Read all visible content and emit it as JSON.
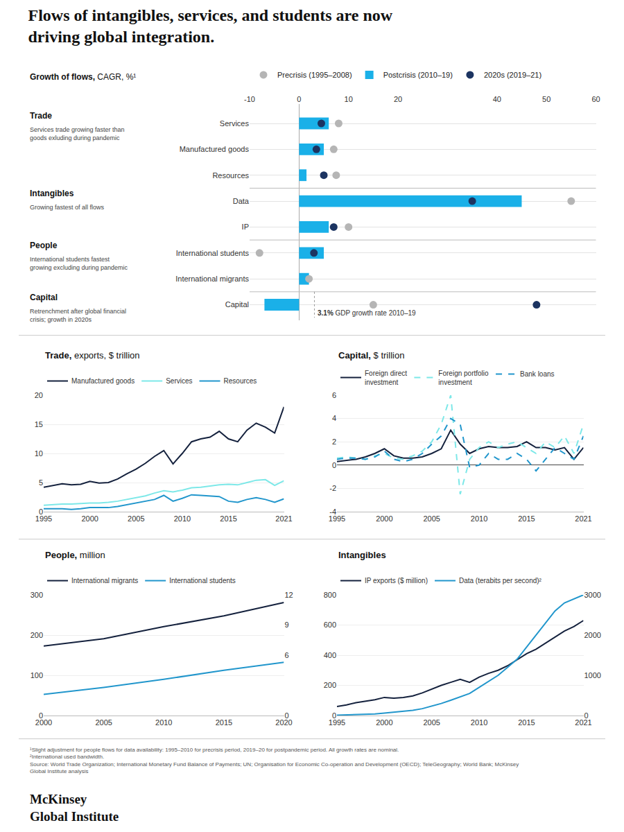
{
  "chart_data": [
    {
      "type": "dot",
      "title": "Flows of intangibles, services, and students are now\ndriving global integration.",
      "subtitle": "Growth of flows, CAGR, %¹",
      "orientation": "horizontal",
      "categories": [
        "Services",
        "Manufactured goods",
        "Resources",
        "Data",
        "IP",
        "International students",
        "International migrants",
        "Capital"
      ],
      "series": [
        {
          "name": "Precrisis (1995–2008)",
          "type": "scatter",
          "marker": "circle",
          "color": "#b5b5b5",
          "values": [
            8,
            7,
            7.5,
            55,
            10,
            -8,
            2,
            15
          ]
        },
        {
          "name": "Postcrisis (2010–19)",
          "type": "bar",
          "color": "#1ab0e8",
          "values": [
            6,
            5,
            1.5,
            45,
            6,
            5,
            2,
            -7
          ]
        },
        {
          "name": "2020s (2019–21)",
          "type": "scatter",
          "marker": "circle",
          "color": "#1c3461",
          "values": [
            4.5,
            3.5,
            5.0,
            35,
            7,
            3,
            null,
            48
          ]
        }
      ],
      "xlim": [
        -10,
        60
      ],
      "xticks": [
        -10,
        0,
        10,
        20,
        40,
        50,
        60
      ],
      "grid": true,
      "legend": "top",
      "annotations": [
        {
          "category": "Services",
          "title": "Trade",
          "text": "Services trade growing faster than\ngoods exluding during pandemic"
        },
        {
          "category": "Data",
          "title": "Intangibles",
          "text": "Growing fastest of all flows"
        },
        {
          "category": "International students",
          "title": "People",
          "text": "International students fastest\ngrowing excluding during pandemic"
        },
        {
          "category": "Capital",
          "title": "Capital",
          "text": "Retrenchment after global financial\ncrisis; growth in 2020s"
        },
        {
          "x": 3.1,
          "label": "3.1%",
          "text": "GDP growth rate 2010–19"
        }
      ]
    },
    {
      "type": "line",
      "title": "Trade, exports, $ trillion",
      "x": [
        1995,
        1996,
        1997,
        1998,
        1999,
        2000,
        2001,
        2002,
        2003,
        2004,
        2005,
        2006,
        2007,
        2008,
        2009,
        2010,
        2011,
        2012,
        2013,
        2014,
        2015,
        2016,
        2017,
        2018,
        2019,
        2020,
        2021
      ],
      "series": [
        {
          "name": "Manufactured goods",
          "color": "#14213d",
          "values": [
            4.2,
            4.5,
            4.8,
            4.6,
            4.7,
            5.2,
            4.9,
            5.0,
            5.6,
            6.5,
            7.3,
            8.3,
            9.5,
            10.5,
            8.2,
            10.0,
            12.0,
            12.5,
            12.8,
            13.8,
            12.5,
            12.0,
            14.0,
            15.2,
            14.5,
            13.5,
            18.0
          ]
        },
        {
          "name": "Services",
          "color": "#7de8e8",
          "values": [
            1.1,
            1.2,
            1.3,
            1.3,
            1.4,
            1.5,
            1.5,
            1.6,
            1.8,
            2.1,
            2.4,
            2.7,
            3.2,
            3.6,
            3.4,
            3.7,
            4.1,
            4.2,
            4.4,
            4.6,
            4.7,
            4.6,
            5.0,
            5.4,
            5.5,
            4.5,
            5.3
          ]
        },
        {
          "name": "Resources",
          "color": "#2196cc",
          "values": [
            0.5,
            0.5,
            0.5,
            0.4,
            0.5,
            0.7,
            0.7,
            0.7,
            0.9,
            1.2,
            1.5,
            1.8,
            2.1,
            2.8,
            1.8,
            2.3,
            2.9,
            2.8,
            2.7,
            2.6,
            1.8,
            1.6,
            2.1,
            2.4,
            2.1,
            1.6,
            2.2
          ]
        }
      ],
      "xlim": [
        1995,
        2021
      ],
      "xticks": [
        1995,
        2000,
        2005,
        2010,
        2015,
        2021
      ],
      "ylim": [
        0,
        20
      ],
      "yticks": [
        0,
        5,
        10,
        15,
        20
      ],
      "grid": true,
      "legend": "top"
    },
    {
      "type": "line",
      "title": "Capital, $ trillion",
      "x": [
        1995,
        1996,
        1997,
        1998,
        1999,
        2000,
        2001,
        2002,
        2003,
        2004,
        2005,
        2006,
        2007,
        2008,
        2009,
        2010,
        2011,
        2012,
        2013,
        2014,
        2015,
        2016,
        2017,
        2018,
        2019,
        2020,
        2021
      ],
      "series": [
        {
          "name": "Foreign direct\ninvestment",
          "color": "#14213d",
          "line_style": "solid",
          "values": [
            0.3,
            0.4,
            0.5,
            0.7,
            1.0,
            1.4,
            0.8,
            0.6,
            0.6,
            0.7,
            1.0,
            1.4,
            3.0,
            1.8,
            1.0,
            1.4,
            1.6,
            1.5,
            1.5,
            1.6,
            2.0,
            1.5,
            1.5,
            1.3,
            1.5,
            0.5,
            1.5
          ]
        },
        {
          "name": "Foreign portfolio\ninvestment",
          "color": "#7de8e8",
          "line_style": "dashed",
          "values": [
            0.6,
            0.7,
            0.6,
            0.5,
            0.8,
            1.0,
            0.6,
            0.5,
            0.8,
            1.2,
            2.0,
            3.5,
            6.0,
            -2.5,
            0.5,
            1.5,
            2.0,
            1.5,
            1.8,
            2.0,
            1.5,
            1.0,
            2.0,
            1.5,
            2.5,
            1.0,
            3.5
          ]
        },
        {
          "name": "Bank loans",
          "color": "#2196cc",
          "line_style": "dashed",
          "values": [
            0.5,
            0.6,
            0.6,
            0.5,
            0.7,
            1.2,
            0.5,
            0.3,
            0.5,
            1.0,
            1.8,
            2.5,
            4.0,
            3.5,
            -0.2,
            0.0,
            1.0,
            0.5,
            0.5,
            1.0,
            0.5,
            -0.5,
            0.5,
            1.5,
            1.0,
            0.5,
            2.5
          ]
        }
      ],
      "xlim": [
        1995,
        2021
      ],
      "xticks": [
        1995,
        2000,
        2005,
        2010,
        2015,
        2021
      ],
      "ylim": [
        -4,
        6
      ],
      "yticks": [
        -4,
        -2,
        0,
        2,
        4,
        6
      ],
      "grid": true,
      "legend": "top"
    },
    {
      "type": "line",
      "title": "People, million",
      "x": [
        2000,
        2005,
        2010,
        2015,
        2020
      ],
      "series": [
        {
          "name": "International migrants",
          "color": "#14213d",
          "values": [
            173,
            191,
            221,
            248,
            281
          ]
        },
        {
          "name": "International students",
          "color": "#2196cc",
          "axis": "y2",
          "values": [
            2.1,
            2.8,
            3.6,
            4.5,
            5.3
          ]
        }
      ],
      "xlim": [
        2000,
        2020
      ],
      "xticks": [
        2000,
        2005,
        2010,
        2015,
        2020
      ],
      "ylim": [
        0,
        300
      ],
      "yticks": [
        0,
        100,
        200,
        300
      ],
      "y2lim": [
        0,
        12
      ],
      "y2ticks": [
        0,
        6,
        9,
        12
      ],
      "grid": true,
      "legend": "top"
    },
    {
      "type": "line",
      "title": "Intangibles",
      "x": [
        1995,
        1996,
        1997,
        1998,
        1999,
        2000,
        2001,
        2002,
        2003,
        2004,
        2005,
        2006,
        2007,
        2008,
        2009,
        2010,
        2011,
        2012,
        2013,
        2014,
        2015,
        2016,
        2017,
        2018,
        2019,
        2020,
        2021
      ],
      "series": [
        {
          "name": "IP exports ($ million)",
          "color": "#14213d",
          "values": [
            60,
            70,
            85,
            95,
            105,
            120,
            115,
            120,
            130,
            150,
            175,
            200,
            220,
            240,
            220,
            255,
            280,
            300,
            330,
            370,
            410,
            440,
            480,
            520,
            560,
            590,
            630
          ]
        },
        {
          "name": "Data (terabits per second)²",
          "color": "#2196cc",
          "axis": "y2",
          "values": [
            10,
            15,
            20,
            28,
            40,
            60,
            80,
            100,
            130,
            170,
            230,
            300,
            380,
            470,
            550,
            700,
            850,
            1000,
            1200,
            1400,
            1700,
            2000,
            2300,
            2600,
            2800,
            2900,
            3000
          ]
        }
      ],
      "xlim": [
        1995,
        2021
      ],
      "xticks": [
        1995,
        2000,
        2005,
        2010,
        2015,
        2021
      ],
      "ylim": [
        0,
        800
      ],
      "yticks": [
        0,
        200,
        400,
        600,
        800
      ],
      "y2lim": [
        0,
        3000
      ],
      "y2ticks": [
        0,
        1000,
        2000,
        3000
      ],
      "grid": true,
      "legend": "top"
    }
  ],
  "footnotes": [
    "¹Slight adjustment for people flows for data availability: 1995–2010 for precrisis period, 2019–20 for postpandemic period. All growth rates are nominal.",
    "²International used bandwidth.",
    "Source: World Trade Organization; International Monetary Fund Balance of Payments; UN; Organisation for Economic Co-operation and Development (OECD); TeleGeography; World Bank; McKinsey",
    "Global Institute analysis"
  ],
  "logo": "McKinsey\nGlobal Institute"
}
